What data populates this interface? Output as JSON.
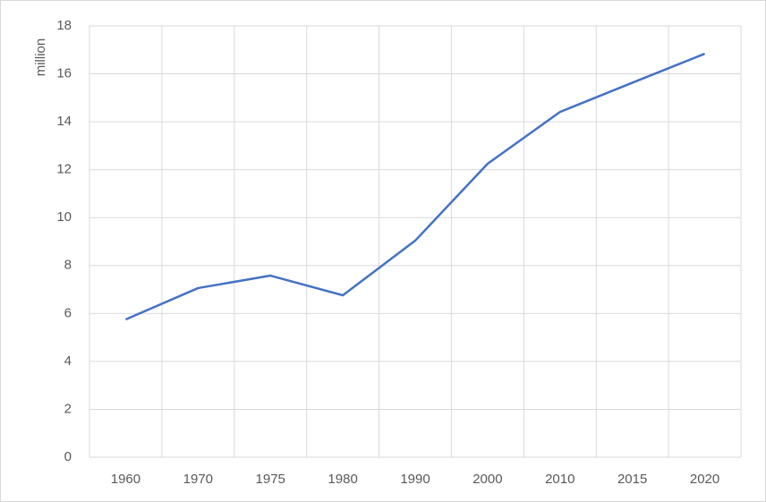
{
  "chart_data": {
    "type": "line",
    "y_label": "million",
    "categories": [
      "1960",
      "1970",
      "1975",
      "1980",
      "1990",
      "2000",
      "2010",
      "2015",
      "2020"
    ],
    "values": [
      5.75,
      7.06,
      7.58,
      6.76,
      9.04,
      12.25,
      14.41,
      15.63,
      16.84
    ],
    "color": "#4472c4",
    "ylim": [
      0,
      18
    ],
    "yticks": [
      0,
      2,
      4,
      6,
      8,
      10,
      12,
      14,
      16,
      18
    ],
    "grid": true
  }
}
